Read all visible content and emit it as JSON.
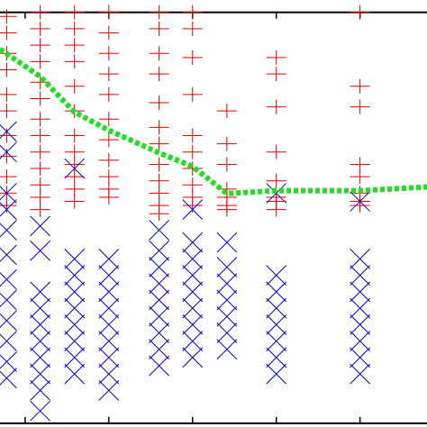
{
  "chart_data": {
    "type": "scatter",
    "xlim": [
      0.7,
      5.8
    ],
    "ylim": [
      -0.09,
      10.3
    ],
    "xticks": [
      1,
      2,
      3,
      4,
      5
    ],
    "series": [
      {
        "color": "#e00000",
        "marker": "plus",
        "x": [
          0.78,
          0.78,
          0.78,
          0.78,
          0.78,
          0.78,
          0.78,
          0.78,
          0.78,
          0.78,
          0.78,
          1.18,
          1.18,
          1.18,
          1.18,
          1.18,
          1.18,
          1.18,
          1.18,
          1.18,
          1.18,
          1.18,
          1.18,
          1.18,
          1.59,
          1.59,
          1.59,
          1.59,
          1.59,
          1.59,
          1.59,
          1.59,
          1.59,
          1.59,
          1.59,
          1.59,
          2.0,
          2.0,
          2.0,
          2.0,
          2.0,
          2.0,
          2.0,
          2.0,
          2.0,
          2.0,
          2.0,
          2.6,
          2.6,
          2.6,
          2.6,
          2.6,
          2.6,
          2.6,
          2.6,
          2.6,
          2.6,
          2.6,
          2.6,
          3.0,
          3.0,
          3.0,
          3.0,
          3.0,
          3.0,
          3.0,
          3.0,
          3.0,
          3.0,
          3.41,
          3.41,
          3.41,
          3.41,
          3.41,
          3.41,
          3.41,
          4.0,
          4.0,
          4.0,
          4.0,
          4.0,
          4.0,
          4.0,
          4.0,
          5.0,
          5.0,
          5.0,
          5.0,
          5.0,
          5.0,
          5.0,
          5.0
        ],
        "values": [
          9.9,
          9.5,
          9.0,
          8.6,
          8.0,
          7.6,
          7.0,
          6.5,
          6.0,
          5.6,
          5.3,
          10.0,
          9.6,
          9.2,
          8.8,
          8.3,
          7.9,
          7.4,
          7.0,
          6.6,
          6.2,
          5.8,
          5.5,
          5.2,
          10.0,
          9.6,
          9.2,
          8.8,
          8.2,
          7.6,
          7.0,
          6.6,
          6.3,
          6.0,
          5.7,
          5.4,
          10.0,
          9.5,
          9.0,
          8.5,
          8.0,
          7.4,
          6.9,
          6.4,
          6.0,
          5.7,
          5.5,
          10.0,
          9.6,
          9.0,
          8.5,
          7.8,
          7.2,
          6.8,
          6.3,
          5.9,
          5.6,
          5.3,
          5.1,
          10.0,
          9.6,
          8.9,
          8.0,
          7.0,
          6.6,
          6.2,
          5.8,
          5.5,
          5.3,
          7.6,
          6.8,
          6.3,
          5.7,
          5.5,
          5.3,
          5.2,
          8.9,
          8.5,
          7.7,
          6.6,
          5.9,
          5.5,
          5.4,
          5.2,
          10.0,
          8.2,
          7.7,
          6.3,
          6.0,
          5.6,
          5.4,
          5.3
        ]
      },
      {
        "color": "#0000e0",
        "marker": "cross",
        "x": [
          0.78,
          0.78,
          0.78,
          0.78,
          0.78,
          0.78,
          0.78,
          0.78,
          0.78,
          0.78,
          0.78,
          0.78,
          1.18,
          1.18,
          1.18,
          1.18,
          1.18,
          1.18,
          1.18,
          1.18,
          1.18,
          1.18,
          1.59,
          1.59,
          1.59,
          1.59,
          1.59,
          1.59,
          1.59,
          1.59,
          1.59,
          2.0,
          2.0,
          2.0,
          2.0,
          2.0,
          2.0,
          2.0,
          2.0,
          2.0,
          2.6,
          2.6,
          2.6,
          2.6,
          2.6,
          2.6,
          2.6,
          2.6,
          2.6,
          3.0,
          3.0,
          3.0,
          3.0,
          3.0,
          3.0,
          3.0,
          3.0,
          3.0,
          3.41,
          3.41,
          3.41,
          3.41,
          3.41,
          3.41,
          3.41,
          4.0,
          4.0,
          4.0,
          4.0,
          4.0,
          4.0,
          4.0,
          4.0,
          5.0,
          5.0,
          5.0,
          5.0,
          5.0,
          5.0,
          5.0,
          5.0,
          5.0
        ],
        "values": [
          7.1,
          6.6,
          5.6,
          5.2,
          4.7,
          4.1,
          3.5,
          3.0,
          2.5,
          2.0,
          1.5,
          1.1,
          4.8,
          4.2,
          3.2,
          2.8,
          2.4,
          2.0,
          1.6,
          1.2,
          0.8,
          0.3,
          6.2,
          4.0,
          3.6,
          3.2,
          2.8,
          2.4,
          2.0,
          1.6,
          1.2,
          4.0,
          3.6,
          3.2,
          2.8,
          2.4,
          2.0,
          1.6,
          1.2,
          0.8,
          4.7,
          4.2,
          3.8,
          3.4,
          3.0,
          2.6,
          2.2,
          1.8,
          1.4,
          5.2,
          4.4,
          4.0,
          3.6,
          3.2,
          2.8,
          2.4,
          2.0,
          1.6,
          4.4,
          3.8,
          3.4,
          3.0,
          2.6,
          2.2,
          1.8,
          5.6,
          3.6,
          3.2,
          2.8,
          2.4,
          2.0,
          1.6,
          1.2,
          5.4,
          4.0,
          3.6,
          3.2,
          2.8,
          2.4,
          2.0,
          1.6,
          1.2
        ]
      },
      {
        "color": "#22dd22",
        "marker": "dotted-line",
        "x": [
          0.7,
          1.18,
          1.59,
          2.0,
          2.6,
          3.0,
          3.41,
          4.0,
          5.0,
          5.8
        ],
        "values": [
          9.1,
          8.44,
          7.57,
          7.13,
          6.58,
          6.25,
          5.59,
          5.66,
          5.66,
          5.75
        ]
      }
    ]
  }
}
